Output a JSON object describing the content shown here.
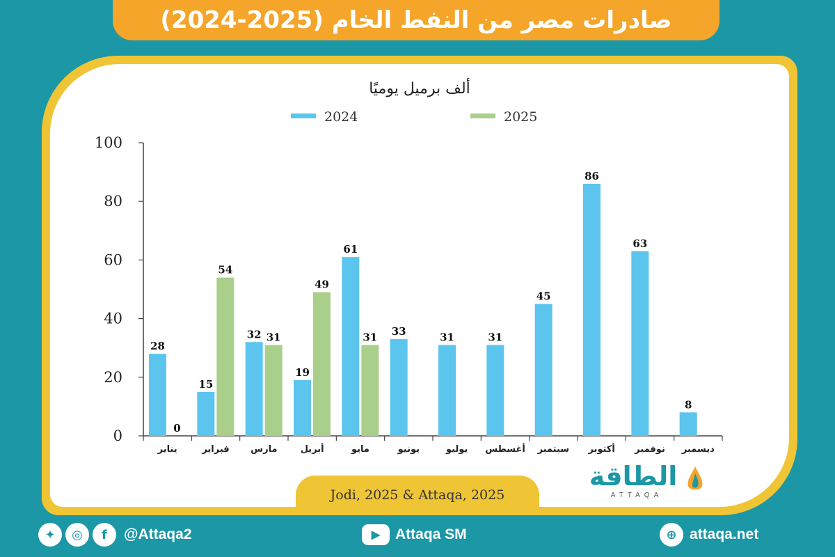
{
  "title": "صادرات مصر من النفط الخام (2025-2024)",
  "source": "Jodi, 2025 & Attaqa, 2025",
  "logo": {
    "arabic": "الطاقة",
    "english": "ATTAQA"
  },
  "footer": {
    "social_handle": "@Attaqa2",
    "youtube": "Attaqa SM",
    "website": "attaqa.net"
  },
  "colors": {
    "series_2024": "#5bc5ee",
    "series_2025": "#a9cf8a",
    "accent": "#f4a52a",
    "frame": "#efc536",
    "background": "#1b97a6"
  },
  "chart_data": {
    "type": "bar",
    "title": "ألف برميل يوميًا",
    "categories": [
      "يناير",
      "فبراير",
      "مارس",
      "أبريل",
      "مايو",
      "يونيو",
      "يوليو",
      "أغسطس",
      "سبتمبر",
      "أكتوبر",
      "نوفمبر",
      "ديسمبر"
    ],
    "series": [
      {
        "name": "2024",
        "color": "#5bc5ee",
        "values": [
          28,
          15,
          32,
          19,
          61,
          33,
          31,
          31,
          45,
          86,
          63,
          8
        ]
      },
      {
        "name": "2025",
        "color": "#a9cf8a",
        "values": [
          0,
          54,
          31,
          49,
          31,
          null,
          null,
          null,
          null,
          null,
          null,
          null
        ]
      }
    ],
    "ylim": [
      0,
      100
    ],
    "yticks": [
      0,
      20,
      40,
      60,
      80,
      100
    ],
    "legend_position": "top",
    "grid": false
  }
}
